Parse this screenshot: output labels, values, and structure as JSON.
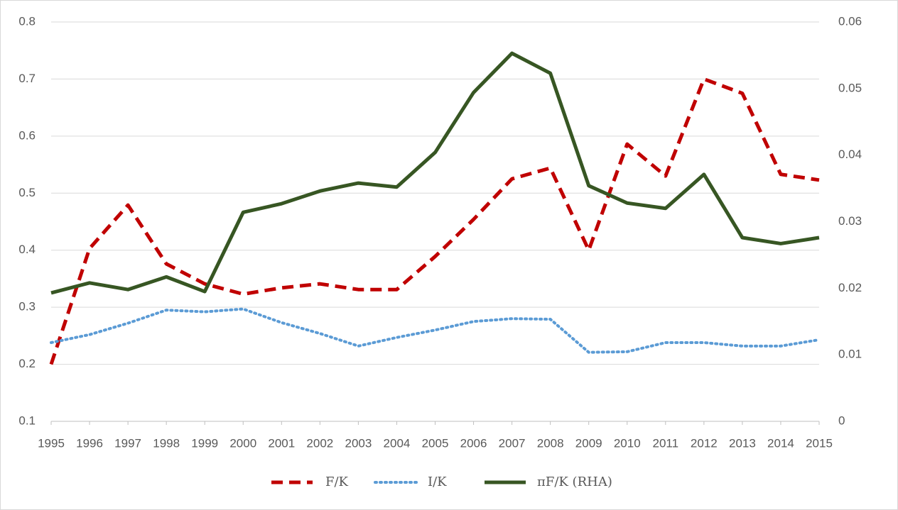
{
  "chart_data": {
    "type": "line",
    "categories": [
      "1995",
      "1996",
      "1997",
      "1998",
      "1999",
      "2000",
      "2001",
      "2002",
      "2003",
      "2004",
      "2005",
      "2006",
      "2007",
      "2008",
      "2009",
      "2010",
      "2011",
      "2012",
      "2013",
      "2014",
      "2015"
    ],
    "series": [
      {
        "name": "F/K",
        "color": "#c00000",
        "dash": "dashed",
        "values": [
          0.2,
          0.403,
          0.479,
          0.376,
          0.341,
          0.323,
          0.334,
          0.341,
          0.331,
          0.331,
          0.389,
          0.454,
          0.525,
          0.544,
          0.4,
          0.586,
          0.53,
          0.7,
          0.675,
          0.533,
          0.523
        ]
      },
      {
        "name": "I/K",
        "color": "#5b9bd5",
        "dash": "dotted",
        "values": [
          0.238,
          0.252,
          0.272,
          0.295,
          0.292,
          0.297,
          0.273,
          0.254,
          0.232,
          0.247,
          0.26,
          0.275,
          0.28,
          0.279,
          0.221,
          0.222,
          0.238,
          0.238,
          0.232,
          0.232,
          0.243
        ]
      },
      {
        "name": "πF/K (RHA)",
        "color": "#375623",
        "dash": "solid",
        "axis": "y2",
        "values": [
          0.0193,
          0.0208,
          0.0198,
          0.0217,
          0.0195,
          0.0314,
          0.0327,
          0.0346,
          0.0358,
          0.0352,
          0.0404,
          0.0494,
          0.0553,
          0.0523,
          0.0354,
          0.0328,
          0.032,
          0.0371,
          0.0276,
          0.0267,
          0.0276
        ]
      }
    ],
    "ylim": [
      0.1,
      0.8
    ],
    "yticks": [
      0.1,
      0.2,
      0.3,
      0.4,
      0.5,
      0.6,
      0.7,
      0.8
    ],
    "y2lim": [
      0,
      0.06
    ],
    "y2ticks": [
      0,
      0.01,
      0.02,
      0.03,
      0.04,
      0.05,
      0.06
    ],
    "grid": true,
    "legend": "bottom"
  }
}
